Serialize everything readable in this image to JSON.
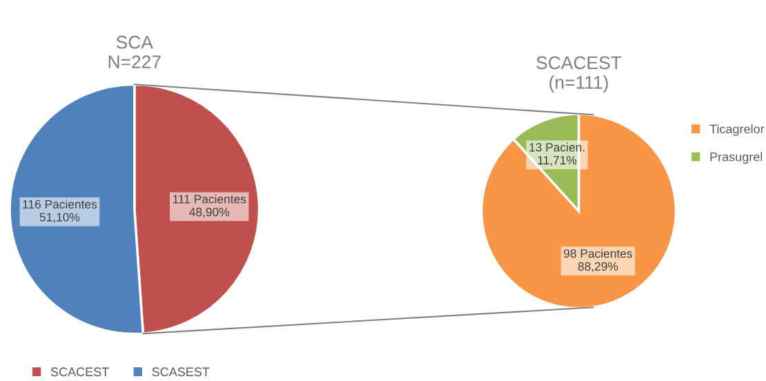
{
  "chart_data": [
    {
      "type": "pie",
      "title": "SCA\nN=227",
      "categories": [
        "SCACEST",
        "SCASEST"
      ],
      "values": [
        111,
        116
      ],
      "colors": [
        "#c0504d",
        "#4f81bd"
      ],
      "value_labels": [
        "111 Pacientes\n48,90%",
        "116 Pacientes\n51,10%"
      ],
      "legend": "bottom"
    },
    {
      "type": "pie",
      "title": "SCACEST\n(n=111)",
      "categories": [
        "Ticagrelor",
        "Prasugrel"
      ],
      "values": [
        98,
        13
      ],
      "colors": [
        "#f79646",
        "#9bbb59"
      ],
      "value_labels": [
        "98 Pacientes\n88,29%",
        "13 Pacien.\n11,71%"
      ],
      "legend": "right"
    }
  ]
}
